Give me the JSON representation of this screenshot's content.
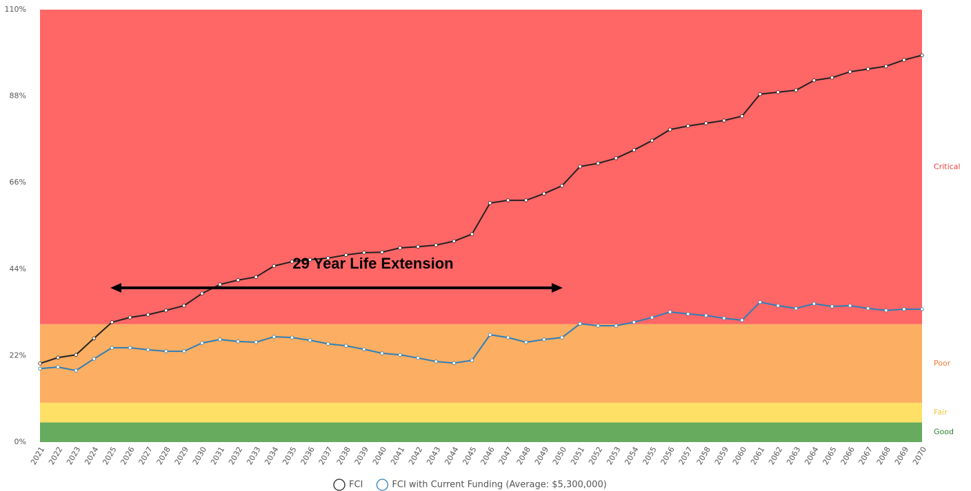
{
  "chart_data": {
    "type": "line",
    "annotation": "29 Year Life Extension",
    "categories": [
      "2021",
      "2022",
      "2023",
      "2024",
      "2025",
      "2026",
      "2027",
      "2028",
      "2029",
      "2030",
      "2031",
      "2032",
      "2033",
      "2034",
      "2035",
      "2036",
      "2037",
      "2038",
      "2039",
      "2040",
      "2041",
      "2042",
      "2043",
      "2044",
      "2045",
      "2046",
      "2047",
      "2048",
      "2049",
      "2050",
      "2051",
      "2052",
      "2053",
      "2054",
      "2055",
      "2056",
      "2057",
      "2058",
      "2059",
      "2060",
      "2061",
      "2062",
      "2063",
      "2064",
      "2065",
      "2066",
      "2067",
      "2068",
      "2069",
      "2070"
    ],
    "series": [
      {
        "name": "FCI",
        "color": "#222222",
        "values": [
          20.0,
          21.5,
          22.2,
          26.4,
          30.5,
          31.7,
          32.4,
          33.5,
          34.7,
          37.8,
          40.1,
          41.2,
          42.0,
          44.8,
          45.9,
          46.4,
          46.8,
          47.6,
          48.2,
          48.3,
          49.4,
          49.7,
          50.1,
          51.1,
          52.9,
          60.8,
          61.5,
          61.5,
          63.2,
          65.2,
          70.1,
          70.9,
          72.2,
          74.3,
          76.7,
          79.5,
          80.4,
          81.1,
          81.8,
          82.9,
          88.5,
          89.0,
          89.5,
          92.0,
          92.7,
          94.2,
          94.9,
          95.6,
          97.2,
          98.4
        ]
      },
      {
        "name": "FCI with Current Funding (Average: $5,300,000)",
        "color": "#2d7fb8",
        "values": [
          18.7,
          19.1,
          18.2,
          21.2,
          24.0,
          24.0,
          23.5,
          23.1,
          23.1,
          25.2,
          26.1,
          25.6,
          25.4,
          26.8,
          26.6,
          25.9,
          25.0,
          24.5,
          23.6,
          22.6,
          22.2,
          21.4,
          20.5,
          20.1,
          20.8,
          27.3,
          26.6,
          25.4,
          26.1,
          26.6,
          30.1,
          29.6,
          29.6,
          30.5,
          31.7,
          33.1,
          32.6,
          32.2,
          31.5,
          31.0,
          35.6,
          34.7,
          34.0,
          35.2,
          34.5,
          34.7,
          34.0,
          33.5,
          33.8,
          33.8
        ]
      }
    ],
    "bands": [
      {
        "name": "Good",
        "range": [
          0,
          5
        ],
        "color": "#66ab5e",
        "label_color": "#2e7d32"
      },
      {
        "name": "Fair",
        "range": [
          5,
          10
        ],
        "color": "#fee066",
        "label_color": "#f0c63a"
      },
      {
        "name": "Poor",
        "range": [
          10,
          30
        ],
        "color": "#fcae62",
        "label_color": "#f07c3a"
      },
      {
        "name": "Critical",
        "range": [
          30,
          110
        ],
        "color": "#ff6666",
        "label_color": "#e8423f"
      }
    ],
    "ylim": [
      0,
      110
    ],
    "yticks": [
      {
        "value": 0,
        "label": "0%"
      },
      {
        "value": 22,
        "label": "22%"
      },
      {
        "value": 44,
        "label": "44%"
      },
      {
        "value": 66,
        "label": "66%"
      },
      {
        "value": 88,
        "label": "88%"
      },
      {
        "value": 110,
        "label": "110%"
      }
    ]
  }
}
